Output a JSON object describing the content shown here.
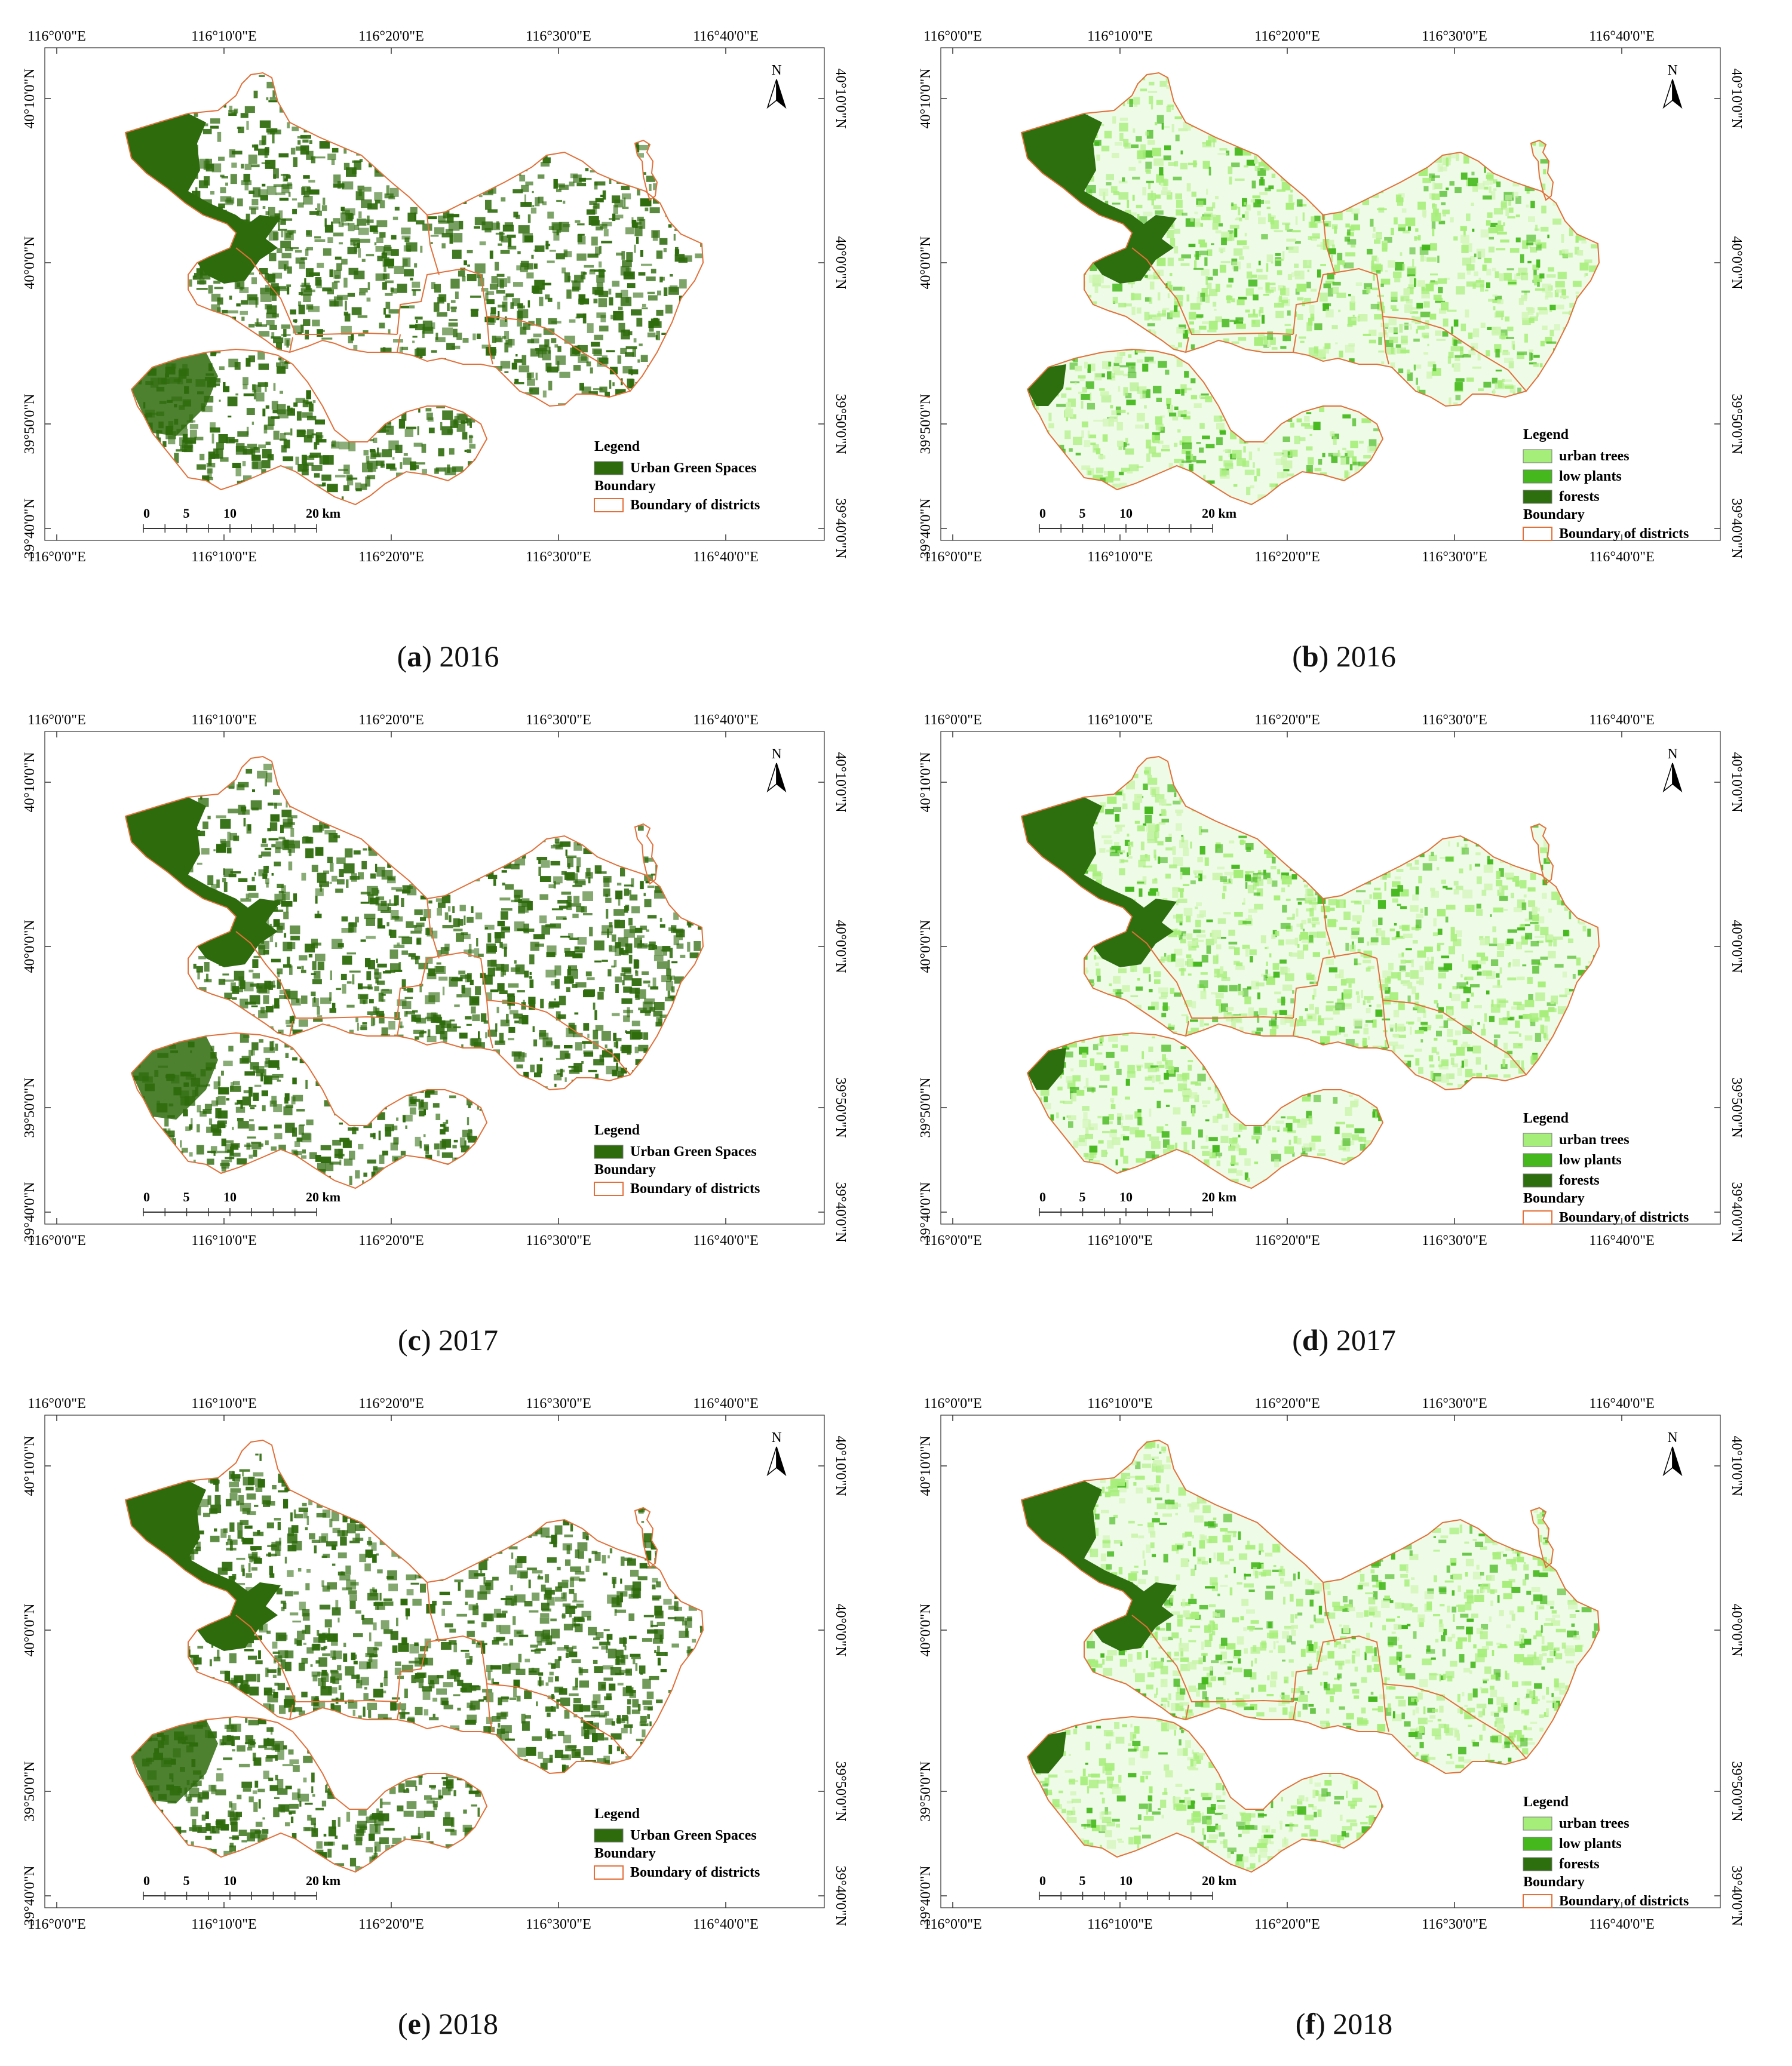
{
  "figure": {
    "panels": [
      {
        "id": "a",
        "year": "2016",
        "type": "ugs"
      },
      {
        "id": "b",
        "year": "2016",
        "type": "veg"
      },
      {
        "id": "c",
        "year": "2017",
        "type": "ugs"
      },
      {
        "id": "d",
        "year": "2017",
        "type": "veg"
      },
      {
        "id": "e",
        "year": "2018",
        "type": "ugs"
      },
      {
        "id": "f",
        "year": "2018",
        "type": "veg"
      }
    ],
    "top_longitude_ticks": [
      "116°0'0\"E",
      "116°10'0\"E",
      "116°20'0\"E",
      "116°30'0\"E",
      "116°40'0\"E"
    ],
    "bottom_longitude_ticks": [
      "116°0'0\"E",
      "116°10'0\"E",
      "116°20'0\"E",
      "116°30'0\"E",
      "116°40'0\"E"
    ],
    "latitude_ticks": [
      "40°10'0\"N",
      "40°0'0\"N",
      "39°50'0\"N",
      "39°40'0\"N"
    ],
    "north_label": "N",
    "scale_bar": {
      "labels": [
        "0",
        "5",
        "10",
        "20 km"
      ]
    },
    "legend_ugs": {
      "legend_title": "Legend",
      "items": [
        {
          "label": "Urban Green Spaces",
          "color": "#2e6b0c"
        }
      ],
      "boundary_title": "Boundary",
      "boundary_label": "Boundary of districts",
      "boundary_color": "#e2703a"
    },
    "legend_veg": {
      "legend_title": "Legend",
      "items": [
        {
          "label": "urban trees",
          "color": "#a6ee7a"
        },
        {
          "label": "low plants",
          "color": "#44b81c"
        },
        {
          "label": "forests",
          "color": "#2d6e0e"
        }
      ],
      "boundary_title": "Boundary",
      "boundary_label": "Boundary of districts",
      "boundary_color": "#e2703a"
    }
  }
}
